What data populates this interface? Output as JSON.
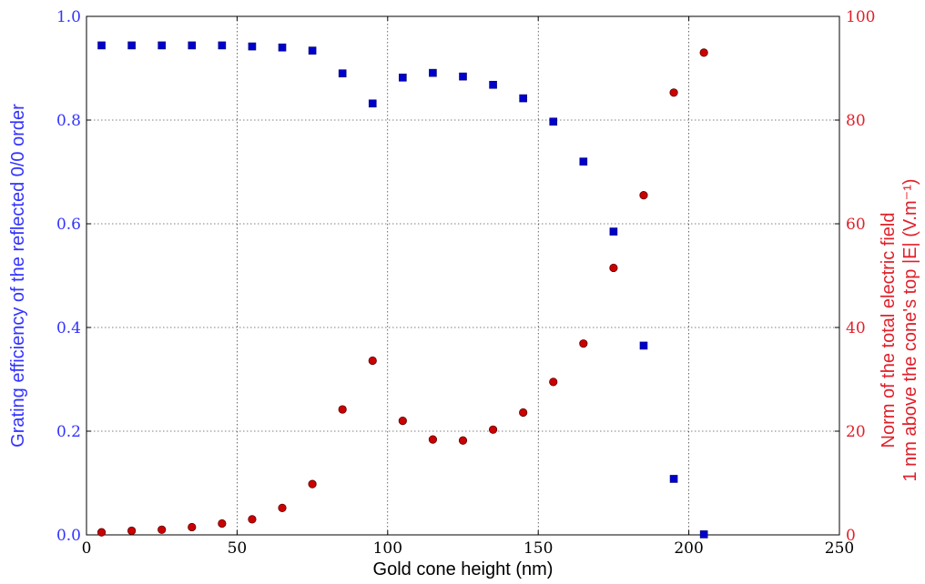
{
  "chart_data": {
    "type": "scatter",
    "title": "",
    "xlabel": "Gold cone height (nm)",
    "ylabel_left": "Grating efficiency of the reflected 0/0 order",
    "ylabel_right_line1": "Norm of the total electric field",
    "ylabel_right_line2": "1 nm above the cone's top |E| (V.m⁻¹)",
    "xlim": [
      0,
      250
    ],
    "ylim_left": [
      0.0,
      1.0
    ],
    "ylim_right": [
      0,
      100
    ],
    "x_ticks": [
      "0",
      "50",
      "100",
      "150",
      "200",
      "250"
    ],
    "y_left_ticks": [
      "0.0",
      "0.2",
      "0.4",
      "0.6",
      "0.8",
      "1.0"
    ],
    "y_right_ticks": [
      "0",
      "20",
      "40",
      "60",
      "80",
      "100"
    ],
    "grid": true,
    "colors": {
      "left": "#0000cc",
      "right": "#cc0000",
      "left_axis_text": "#3333ff",
      "right_axis_text": "#e0202a"
    },
    "series": [
      {
        "axis": "left",
        "marker": "square",
        "x": [
          5,
          15,
          25,
          35,
          45,
          55,
          65,
          75,
          85,
          95,
          105,
          115,
          125,
          135,
          145,
          155,
          165,
          175,
          185,
          195,
          205
        ],
        "y": [
          0.944,
          0.944,
          0.944,
          0.944,
          0.944,
          0.942,
          0.94,
          0.934,
          0.89,
          0.832,
          0.882,
          0.891,
          0.884,
          0.868,
          0.842,
          0.797,
          0.72,
          0.585,
          0.365,
          0.108,
          0.001
        ]
      },
      {
        "axis": "right",
        "marker": "circle",
        "x": [
          5,
          15,
          25,
          35,
          45,
          55,
          65,
          75,
          85,
          95,
          105,
          115,
          125,
          135,
          145,
          155,
          165,
          175,
          185,
          195,
          205
        ],
        "y": [
          0.5,
          0.8,
          1.0,
          1.5,
          2.2,
          3.0,
          5.2,
          9.8,
          24.2,
          33.6,
          22.0,
          18.4,
          18.2,
          20.3,
          23.6,
          29.5,
          36.9,
          51.5,
          65.5,
          85.3,
          93.0
        ]
      }
    ]
  }
}
